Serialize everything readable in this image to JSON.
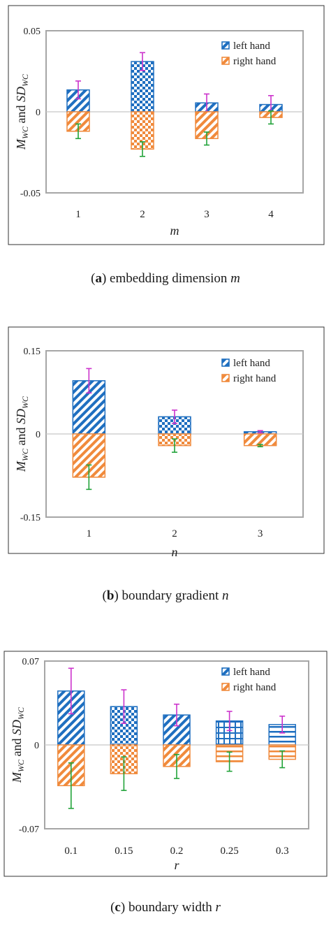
{
  "chart_data": [
    {
      "type": "bar",
      "id": "a",
      "caption": {
        "tag": "a",
        "text": "embedding dimension",
        "var": "m"
      },
      "xlabel": "m",
      "ylabel": {
        "main": "M",
        "main_sub": "WC",
        "mid": " and ",
        "sd": "SD",
        "sd_sub": "WC"
      },
      "categories": [
        "1",
        "2",
        "3",
        "4"
      ],
      "ylim": [
        -0.05,
        0.05
      ],
      "yticks": [
        0.05,
        0,
        -0.05
      ],
      "ytick_labels": [
        "0.05",
        "0",
        "-0.05"
      ],
      "series": [
        {
          "name": "left hand",
          "values": [
            0.0135,
            0.031,
            0.0055,
            0.0045
          ],
          "errors": [
            0.0055,
            0.0055,
            0.0055,
            0.0055
          ],
          "error_color": "#cc33cc",
          "color": "#1f6fc0",
          "pattern": "diag"
        },
        {
          "name": "right hand",
          "values": [
            -0.012,
            -0.023,
            -0.0165,
            -0.0035
          ],
          "errors": [
            0.0045,
            0.0045,
            0.004,
            0.004
          ],
          "error_color": "#22a33a",
          "color": "#f08a3c",
          "pattern": "diag"
        }
      ],
      "patterns": [
        [
          "diag",
          "diag"
        ],
        [
          "check",
          "check"
        ],
        [
          "diag",
          "diag"
        ],
        [
          "diag",
          "diag"
        ]
      ],
      "legend": "top-right"
    },
    {
      "type": "bar",
      "id": "b",
      "caption": {
        "tag": "b",
        "text": "boundary gradient",
        "var": "n"
      },
      "xlabel": "n",
      "ylabel": {
        "main": "M",
        "main_sub": "WC",
        "mid": " and ",
        "sd": "SD",
        "sd_sub": "WC"
      },
      "categories": [
        "1",
        "2",
        "3"
      ],
      "ylim": [
        -0.15,
        0.15
      ],
      "yticks": [
        0.15,
        0,
        -0.15
      ],
      "ytick_labels": [
        "0.15",
        "0",
        "-0.15"
      ],
      "series": [
        {
          "name": "left hand",
          "values": [
            0.096,
            0.031,
            0.004
          ],
          "errors": [
            0.022,
            0.012,
            0.002
          ],
          "error_color": "#cc33cc",
          "color": "#1f6fc0",
          "pattern": "diag"
        },
        {
          "name": "right hand",
          "values": [
            -0.078,
            -0.021,
            -0.021
          ],
          "errors": [
            0.022,
            0.012,
            0.002
          ],
          "error_color": "#22a33a",
          "color": "#f08a3c",
          "pattern": "diag"
        }
      ],
      "patterns": [
        [
          "diag",
          "diag"
        ],
        [
          "check",
          "check"
        ],
        [
          "diag",
          "diag"
        ]
      ],
      "legend": "top-right"
    },
    {
      "type": "bar",
      "id": "c",
      "caption": {
        "tag": "c",
        "text": "boundary width",
        "var": "r"
      },
      "xlabel": "r",
      "ylabel": {
        "main": "M",
        "main_sub": "WC",
        "mid": " and ",
        "sd": "SD",
        "sd_sub": "WC"
      },
      "categories": [
        "0.1",
        "0.15",
        "0.2",
        "0.25",
        "0.3"
      ],
      "ylim": [
        -0.07,
        0.07
      ],
      "yticks": [
        0.07,
        0,
        -0.07
      ],
      "ytick_labels": [
        "0.07",
        "0",
        "-0.07"
      ],
      "series": [
        {
          "name": "left hand",
          "values": [
            0.045,
            0.032,
            0.025,
            0.02,
            0.017
          ],
          "errors": [
            0.019,
            0.014,
            0.009,
            0.008,
            0.007
          ],
          "error_color": "#cc33cc",
          "color": "#1f6fc0",
          "pattern": "diag"
        },
        {
          "name": "right hand",
          "values": [
            -0.034,
            -0.024,
            -0.018,
            -0.014,
            -0.012
          ],
          "errors": [
            0.019,
            0.014,
            0.01,
            0.008,
            0.007
          ],
          "error_color": "#22a33a",
          "color": "#f08a3c",
          "pattern": "diag"
        }
      ],
      "patterns": [
        [
          "diag",
          "diag"
        ],
        [
          "check",
          "check"
        ],
        [
          "diag",
          "diag"
        ],
        [
          "grid",
          "hlines"
        ],
        [
          "hlines",
          "hlines"
        ]
      ],
      "legend": "top-right"
    }
  ]
}
